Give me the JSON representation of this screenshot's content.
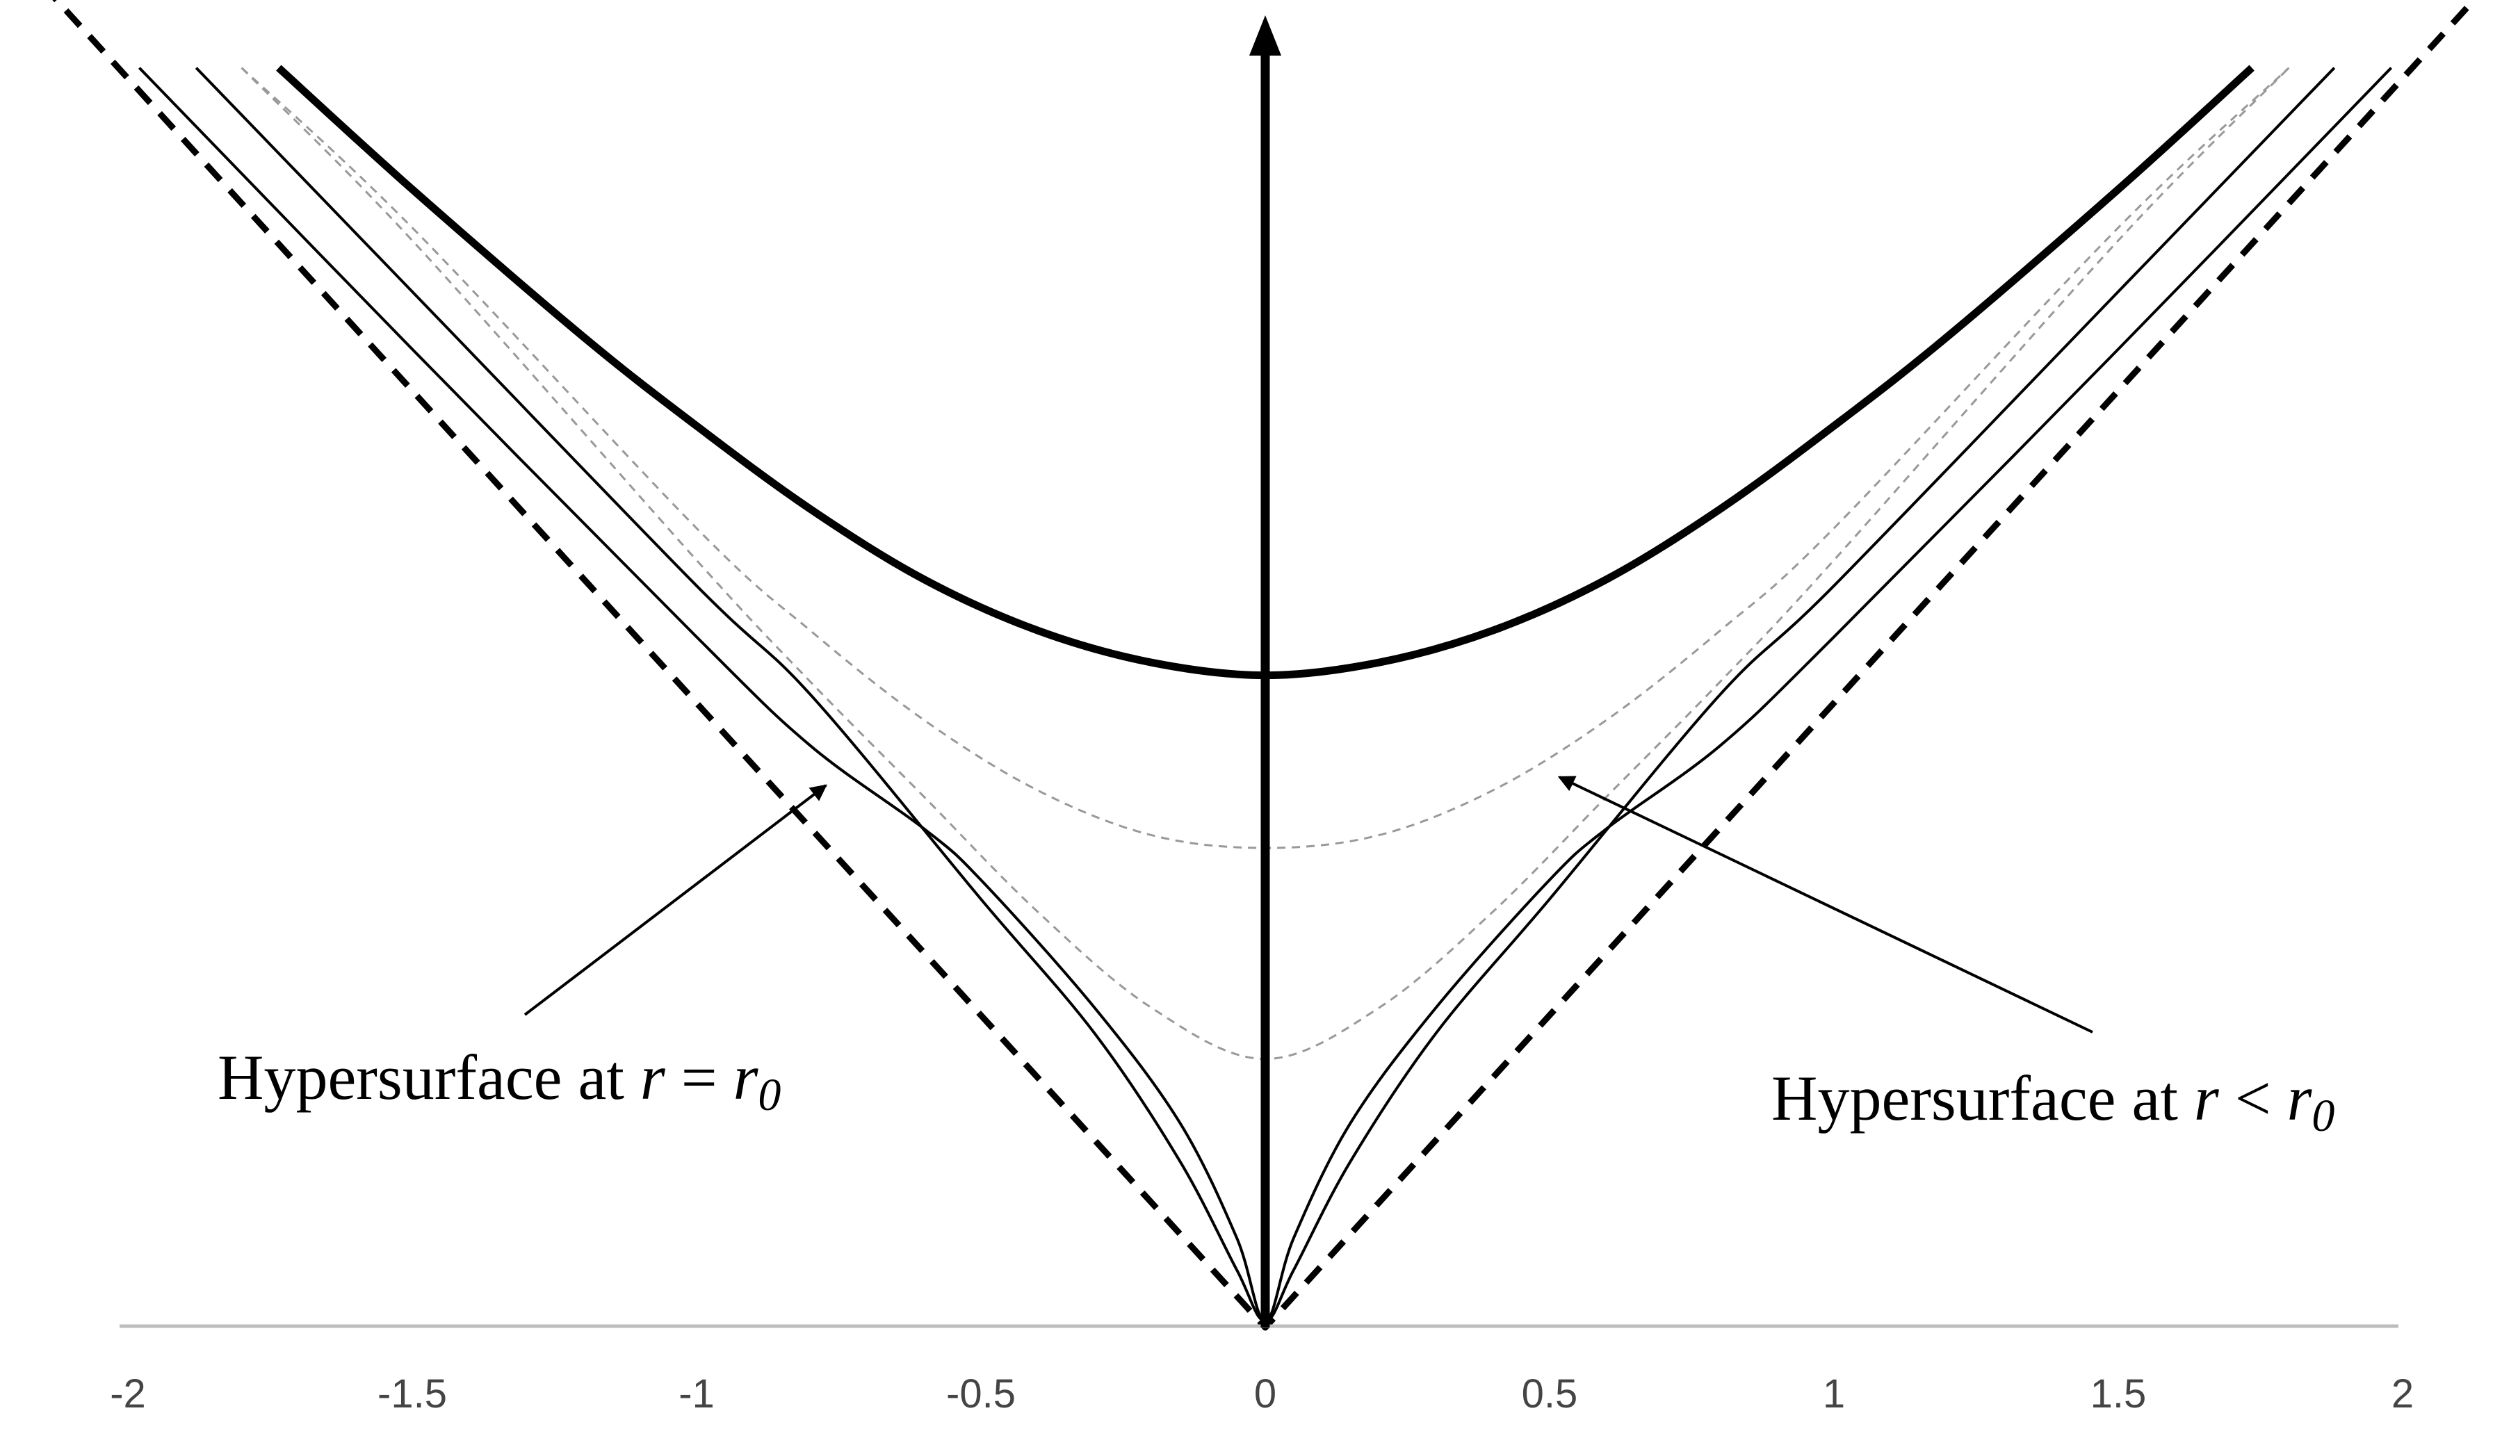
{
  "chart_data": {
    "type": "line",
    "title": "",
    "xlabel": "",
    "ylabel": "",
    "xlim": [
      -2,
      2
    ],
    "x_ticks": [
      {
        "value": -2,
        "label": "-2"
      },
      {
        "value": -1.5,
        "label": "-1.5"
      },
      {
        "value": -1,
        "label": "-1"
      },
      {
        "value": -0.5,
        "label": "-0.5"
      },
      {
        "value": 0,
        "label": "0"
      },
      {
        "value": 0.5,
        "label": "0.5"
      },
      {
        "value": 1,
        "label": "1"
      },
      {
        "value": 1.5,
        "label": "1.5"
      },
      {
        "value": 2,
        "label": "2"
      }
    ],
    "grid": false,
    "series": [
      {
        "style": "thick solid black",
        "x": [
          -1.735,
          -1.5,
          -1.2,
          -1.0,
          -0.8,
          -0.6,
          -0.4,
          -0.2,
          0,
          0.2,
          0.4,
          0.6,
          0.8,
          1.0,
          1.2,
          1.5,
          1.735
        ],
        "y": [
          1.97,
          1.78,
          1.55,
          1.41,
          1.28,
          1.17,
          1.09,
          1.04,
          1.02,
          1.04,
          1.09,
          1.17,
          1.28,
          1.41,
          1.55,
          1.78,
          1.97
        ]
      },
      {
        "style": "thin solid black",
        "x": [
          -1.98,
          -1.5,
          -1.0,
          -0.8,
          -0.6,
          -0.5,
          -0.3,
          -0.15,
          -0.05,
          0,
          0.05,
          0.15,
          0.3,
          0.5,
          0.6,
          0.8,
          1.0,
          1.5,
          1.98
        ],
        "y": [
          1.97,
          1.53,
          1.08,
          0.91,
          0.78,
          0.7,
          0.5,
          0.32,
          0.14,
          0.01,
          0.14,
          0.32,
          0.5,
          0.7,
          0.78,
          0.91,
          1.08,
          1.53,
          1.97
        ]
      },
      {
        "style": "thin solid black",
        "x": [
          -1.88,
          -1.5,
          -1.0,
          -0.8,
          -0.5,
          -0.3,
          -0.15,
          -0.05,
          0,
          0.05,
          0.15,
          0.3,
          0.5,
          0.8,
          1.0,
          1.5,
          1.88
        ],
        "y": [
          1.97,
          1.62,
          1.16,
          0.99,
          0.67,
          0.46,
          0.26,
          0.09,
          0.01,
          0.09,
          0.26,
          0.46,
          0.67,
          0.99,
          1.16,
          1.62,
          1.97
        ]
      },
      {
        "style": "dashed grey",
        "x": [
          -1.8,
          -1.5,
          -1.0,
          -0.8,
          -0.6,
          -0.4,
          -0.2,
          0,
          0.2,
          0.4,
          0.6,
          0.8,
          1.0,
          1.5,
          1.8
        ],
        "y": [
          1.97,
          1.72,
          1.25,
          1.09,
          0.95,
          0.84,
          0.77,
          0.75,
          0.77,
          0.84,
          0.95,
          1.09,
          1.25,
          1.72,
          1.97
        ]
      },
      {
        "style": "dashed grey",
        "x": [
          -1.8,
          -1.5,
          -1.0,
          -0.8,
          -0.6,
          -0.4,
          -0.2,
          0,
          0.2,
          0.4,
          0.6,
          0.8,
          1.0,
          1.5,
          1.8
        ],
        "y": [
          1.97,
          1.7,
          1.2,
          1.01,
          0.83,
          0.65,
          0.5,
          0.42,
          0.5,
          0.65,
          0.83,
          1.01,
          1.2,
          1.7,
          1.97
        ]
      },
      {
        "style": "thick dashed black",
        "x": [
          -2.15,
          0,
          2.15
        ],
        "y": [
          2.1,
          0,
          2.1
        ]
      }
    ],
    "annotations": [
      {
        "text_prefix": "Hypersurface at ",
        "var": "r",
        "relation": " = ",
        "rhs": "r",
        "subscript": "0"
      },
      {
        "text_prefix": "Hypersurface at ",
        "var": "r",
        "relation": " < ",
        "rhs": "r",
        "subscript": "0"
      }
    ],
    "colors": {
      "curves": "#000000",
      "dashed_guides": "#999999",
      "baseline": "#bdbdbd",
      "tick_labels": "#444444"
    }
  }
}
